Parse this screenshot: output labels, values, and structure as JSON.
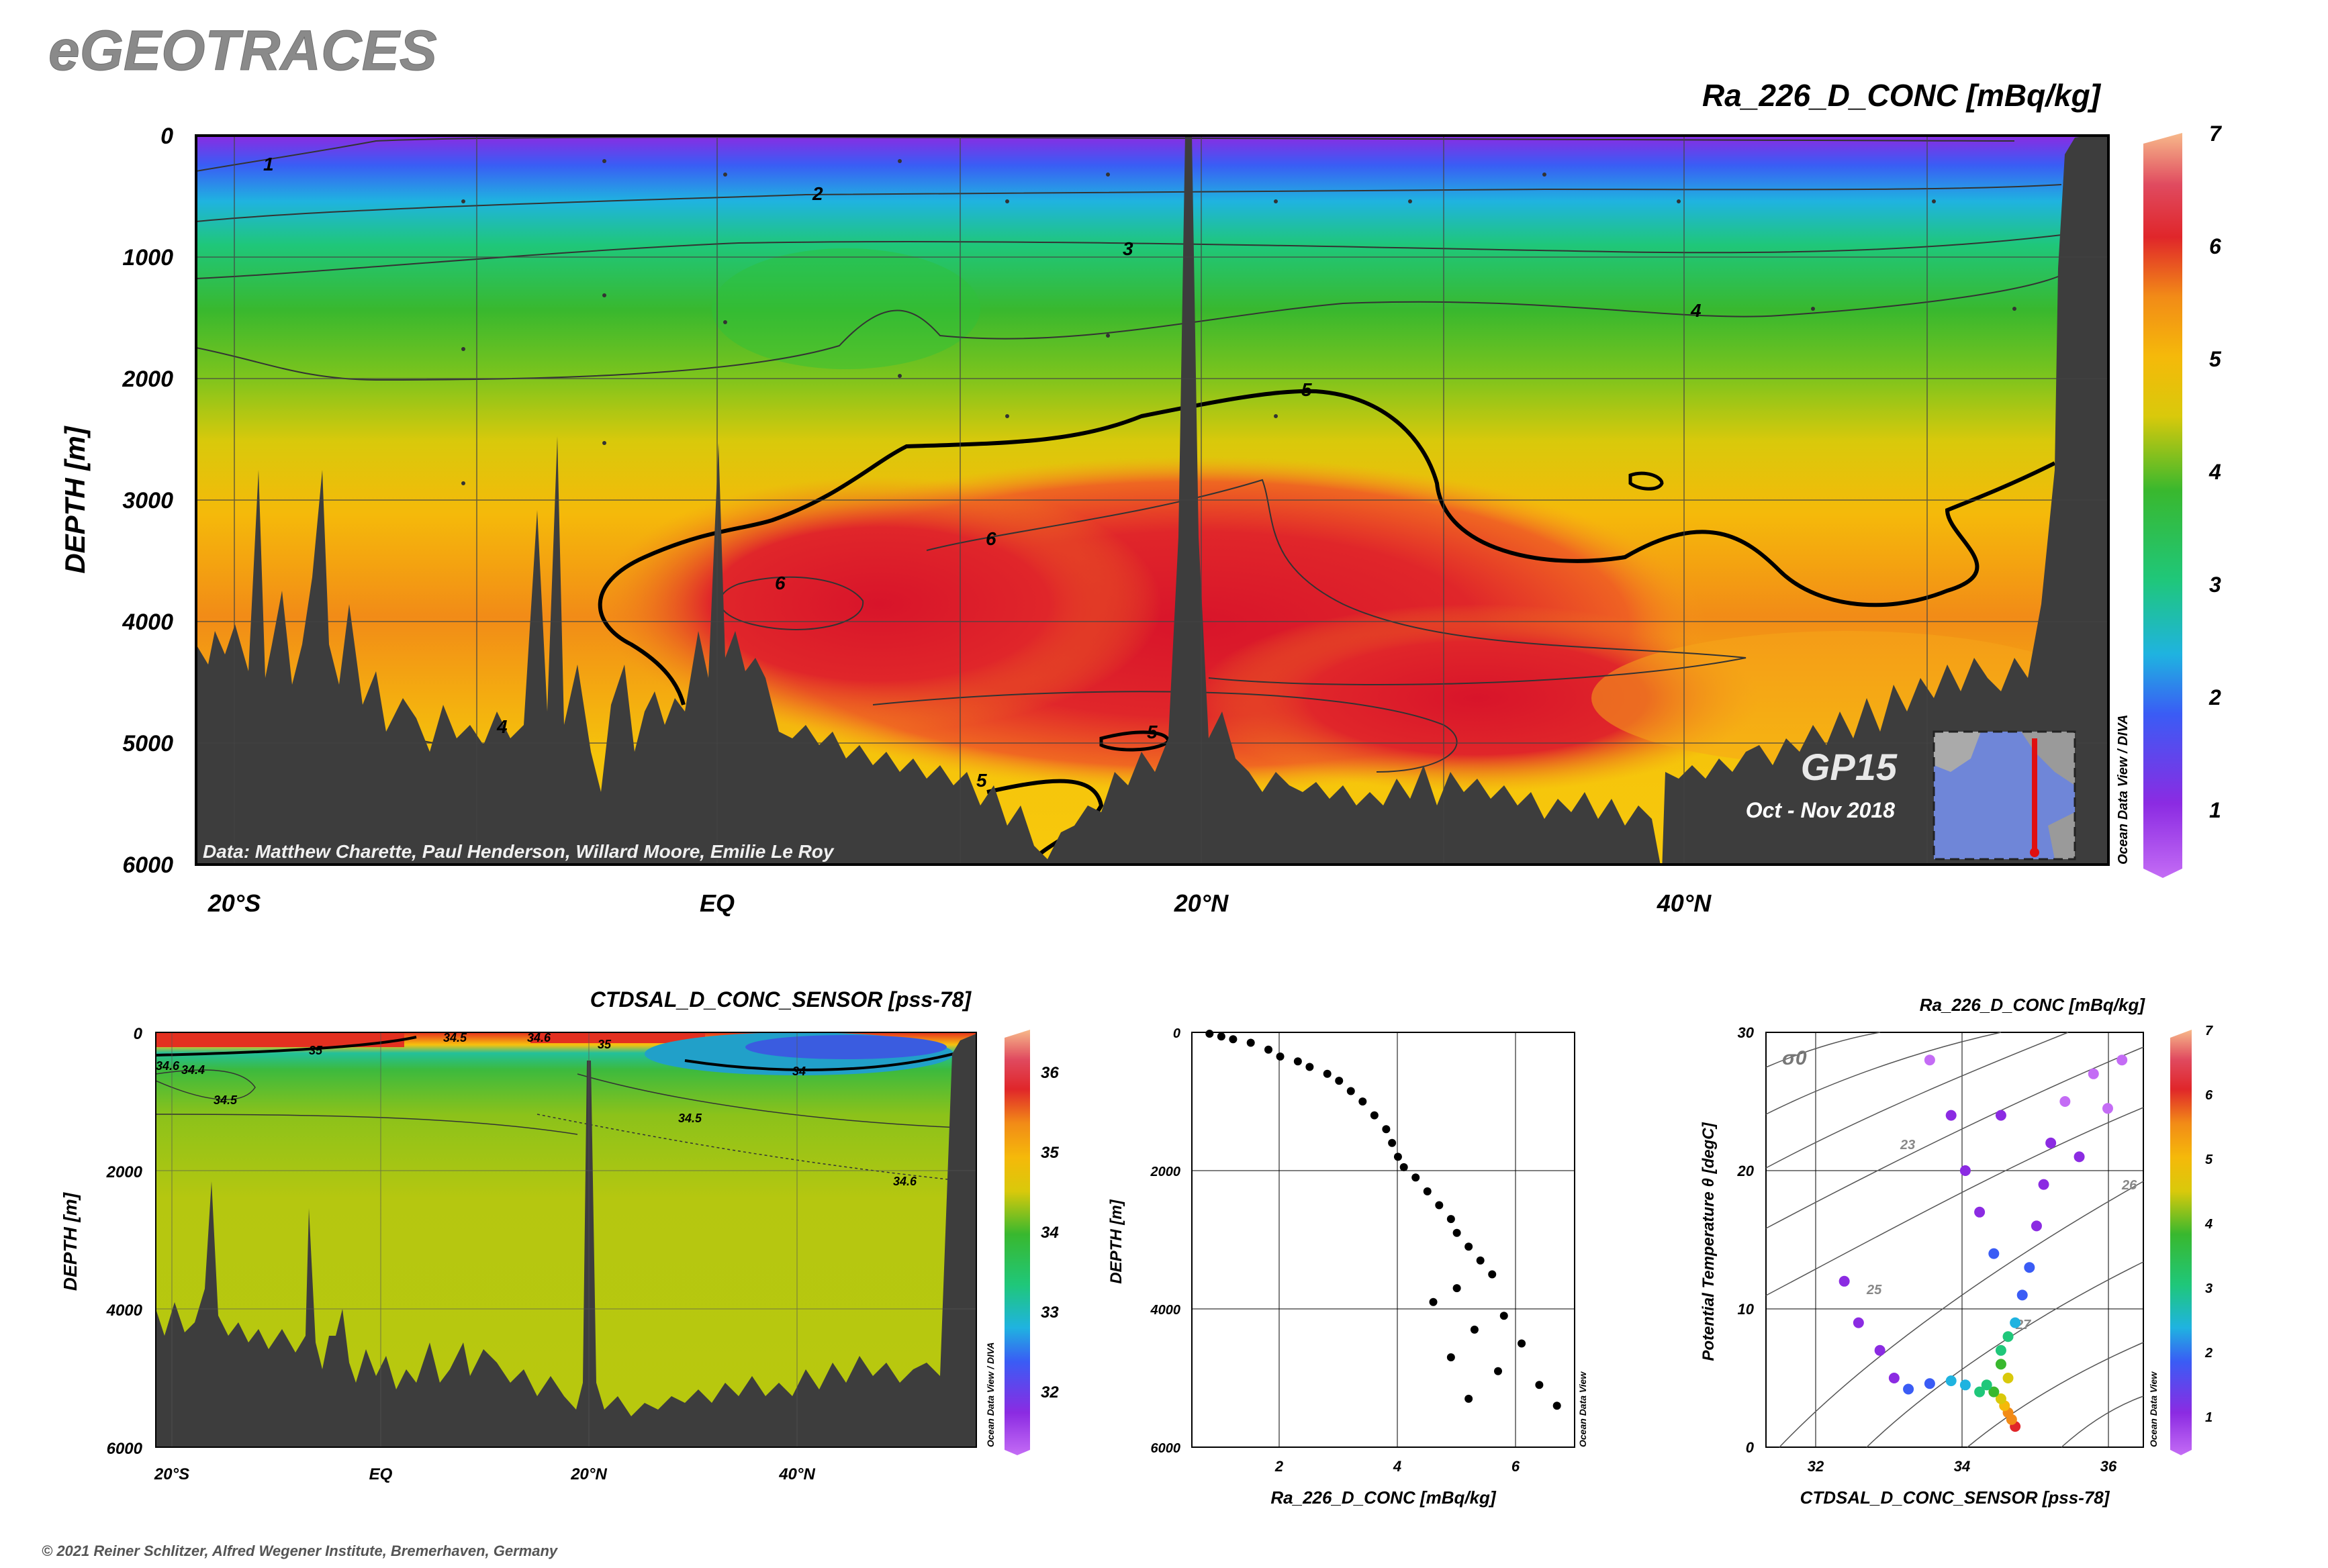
{
  "header": {
    "logo_text": "eGEOTRACES",
    "copyright": "© 2021 Reiner Schlitzer, Alfred Wegener Institute, Bremerhaven, Germany"
  },
  "main_section": {
    "title": "Ra_226_D_CONC [mBq/kg]",
    "ylabel": "DEPTH [m]",
    "credit": "Data: Matthew Charette, Paul Henderson, Willard Moore, Emilie Le Roy",
    "cruise": "GP15",
    "cruise_dates": "Oct - Nov 2018",
    "watermark": "Ocean Data View / DIVA",
    "depth_ticks": [
      "0",
      "1000",
      "2000",
      "3000",
      "4000",
      "5000",
      "6000"
    ],
    "lat_ticks": [
      "20°S",
      "EQ",
      "20°N",
      "40°N"
    ],
    "contour_labels": [
      "1",
      "2",
      "3",
      "4",
      "4",
      "5",
      "5",
      "5",
      "6",
      "6"
    ],
    "colorbar_ticks": [
      "1",
      "2",
      "3",
      "4",
      "5",
      "6",
      "7"
    ],
    "colors": {
      "low": "#8a2be2",
      "mid": "#2ecc40",
      "high": "#e31a1c",
      "max": "#f7a77e",
      "bathymetry": "#3d3d3d"
    }
  },
  "salinity_section": {
    "title": "CTDSAL_D_CONC_SENSOR [pss-78]",
    "ylabel": "DEPTH [m]",
    "watermark": "Ocean Data View / DIVA",
    "depth_ticks": [
      "0",
      "2000",
      "4000",
      "6000"
    ],
    "lat_ticks": [
      "20°S",
      "EQ",
      "20°N",
      "40°N"
    ],
    "contour_labels": [
      "35",
      "34.5",
      "34.5",
      "34",
      "34.5",
      "34.4",
      "34.6",
      "34.6",
      "34.6",
      "35"
    ],
    "colorbar_ticks": [
      "32",
      "33",
      "34",
      "35",
      "36"
    ]
  },
  "scatter_plot": {
    "xlabel": "Ra_226_D_CONC [mBq/kg]",
    "ylabel": "DEPTH [m]",
    "watermark": "Ocean Data View",
    "x_ticks": [
      "2",
      "4",
      "6"
    ],
    "y_ticks": [
      "0",
      "2000",
      "4000",
      "6000"
    ]
  },
  "ts_plot": {
    "title": "Ra_226_D_CONC [mBq/kg]",
    "xlabel": "CTDSAL_D_CONC_SENSOR [pss-78]",
    "ylabel": "Potential Temperature θ [degC]",
    "sigma_label": "σ0",
    "watermark": "Ocean Data View",
    "x_ticks": [
      "32",
      "34",
      "36"
    ],
    "y_ticks": [
      "0",
      "10",
      "20",
      "30"
    ],
    "isopycnal_labels": [
      "23",
      "25",
      "26",
      "27"
    ],
    "colorbar_ticks": [
      "1",
      "2",
      "3",
      "4",
      "5",
      "6",
      "7"
    ]
  },
  "chart_data": [
    {
      "type": "heatmap",
      "title": "Ra_226_D_CONC [mBq/kg]",
      "ylabel": "DEPTH [m]",
      "x_ticks": [
        "20°S",
        "EQ",
        "20°N",
        "40°N"
      ],
      "ylim": [
        6000,
        0
      ],
      "colorbar_range": [
        0.5,
        7
      ],
      "contour_levels": [
        1,
        2,
        3,
        4,
        5,
        6
      ]
    },
    {
      "type": "heatmap",
      "title": "CTDSAL_D_CONC_SENSOR [pss-78]",
      "ylabel": "DEPTH [m]",
      "x_ticks": [
        "20°S",
        "EQ",
        "20°N",
        "40°N"
      ],
      "ylim": [
        6000,
        0
      ],
      "colorbar_range": [
        31.5,
        36.5
      ],
      "contour_levels": [
        34,
        34.4,
        34.5,
        34.6,
        35
      ]
    },
    {
      "type": "scatter",
      "xlabel": "Ra_226_D_CONC [mBq/kg]",
      "ylabel": "DEPTH [m]",
      "xlim": [
        0.5,
        7
      ],
      "ylim": [
        6000,
        0
      ],
      "points": [
        [
          0.8,
          20
        ],
        [
          1.0,
          60
        ],
        [
          1.2,
          100
        ],
        [
          1.5,
          150
        ],
        [
          1.8,
          250
        ],
        [
          2.0,
          350
        ],
        [
          2.3,
          420
        ],
        [
          2.5,
          500
        ],
        [
          2.8,
          600
        ],
        [
          3.0,
          700
        ],
        [
          3.2,
          850
        ],
        [
          3.4,
          1000
        ],
        [
          3.6,
          1200
        ],
        [
          3.8,
          1400
        ],
        [
          3.9,
          1600
        ],
        [
          4.0,
          1800
        ],
        [
          4.1,
          1950
        ],
        [
          4.3,
          2100
        ],
        [
          4.5,
          2300
        ],
        [
          4.7,
          2500
        ],
        [
          4.9,
          2700
        ],
        [
          5.0,
          2900
        ],
        [
          5.2,
          3100
        ],
        [
          5.4,
          3300
        ],
        [
          5.6,
          3500
        ],
        [
          5.0,
          3700
        ],
        [
          4.6,
          3900
        ],
        [
          5.8,
          4100
        ],
        [
          5.3,
          4300
        ],
        [
          6.1,
          4500
        ],
        [
          4.9,
          4700
        ],
        [
          5.7,
          4900
        ],
        [
          6.4,
          5100
        ],
        [
          5.2,
          5300
        ],
        [
          6.7,
          5400
        ]
      ]
    },
    {
      "type": "scatter",
      "xlabel": "CTDSAL_D_CONC_SENSOR [pss-78]",
      "ylabel": "Potential Temperature θ [degC]",
      "xlim": [
        31.2,
        36.5
      ],
      "ylim": [
        0,
        30
      ],
      "colorbar_range": [
        0.5,
        7
      ],
      "points": [
        [
          34.7,
          1.5,
          6.2
        ],
        [
          34.65,
          2.0,
          5.9
        ],
        [
          34.6,
          2.5,
          5.5
        ],
        [
          34.55,
          3.0,
          5.0
        ],
        [
          34.5,
          3.5,
          4.6
        ],
        [
          34.4,
          4.0,
          4.1
        ],
        [
          34.3,
          4.5,
          3.6
        ],
        [
          34.2,
          4.0,
          3.2
        ],
        [
          34.0,
          4.5,
          2.8
        ],
        [
          33.8,
          4.8,
          2.5
        ],
        [
          33.5,
          4.6,
          2.2
        ],
        [
          33.2,
          4.2,
          2.0
        ],
        [
          33.0,
          5.0,
          1.9
        ],
        [
          32.8,
          7.0,
          1.7
        ],
        [
          32.5,
          9.0,
          1.5
        ],
        [
          32.3,
          12.0,
          1.3
        ],
        [
          34.6,
          5.0,
          4.9
        ],
        [
          34.5,
          6.0,
          4.4
        ],
        [
          34.5,
          7.0,
          3.8
        ],
        [
          34.6,
          8.0,
          3.2
        ],
        [
          34.7,
          9.0,
          2.7
        ],
        [
          34.8,
          11.0,
          2.3
        ],
        [
          34.9,
          13.0,
          2.0
        ],
        [
          35.0,
          16.0,
          1.7
        ],
        [
          35.1,
          19.0,
          1.5
        ],
        [
          35.2,
          22.0,
          1.3
        ],
        [
          35.4,
          25.0,
          1.2
        ],
        [
          35.8,
          27.0,
          1.1
        ],
        [
          36.2,
          28.0,
          1.0
        ],
        [
          34.4,
          14.0,
          2.0
        ],
        [
          34.2,
          17.0,
          1.7
        ],
        [
          34.0,
          20.0,
          1.5
        ],
        [
          33.8,
          24.0,
          1.3
        ],
        [
          33.5,
          28.0,
          1.1
        ],
        [
          34.5,
          24.0,
          1.3
        ],
        [
          35.6,
          21.0,
          1.4
        ],
        [
          36.0,
          24.5,
          1.2
        ]
      ]
    }
  ]
}
